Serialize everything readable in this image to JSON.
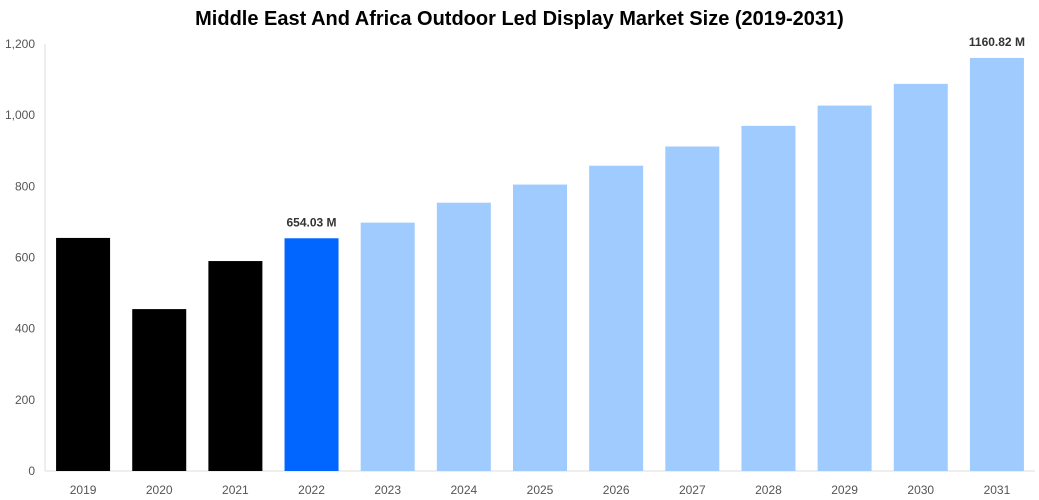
{
  "chart_data": {
    "type": "bar",
    "title": "Middle East And Africa Outdoor Led Display Market Size (2019-2031)",
    "xlabel": "",
    "ylabel": "",
    "ylim": [
      0,
      1200
    ],
    "yticks": [
      0,
      200,
      400,
      600,
      800,
      1000,
      1200
    ],
    "ytick_labels": [
      "0",
      "200",
      "400",
      "600",
      "800",
      "1,000",
      "1,200"
    ],
    "grid": false,
    "categories": [
      "2019",
      "2020",
      "2021",
      "2022",
      "2023",
      "2024",
      "2025",
      "2026",
      "2027",
      "2028",
      "2029",
      "2030",
      "2031"
    ],
    "values": [
      655,
      455,
      590,
      654.03,
      698,
      754,
      805,
      858,
      912,
      970,
      1027,
      1088,
      1160.82
    ],
    "colors": [
      "#000000",
      "#000000",
      "#000000",
      "#0066ff",
      "#a0cbff",
      "#a0cbff",
      "#a0cbff",
      "#a0cbff",
      "#a0cbff",
      "#a0cbff",
      "#a0cbff",
      "#a0cbff",
      "#a0cbff"
    ],
    "data_labels": {
      "3": "654.03 M",
      "12": "1160.82 M"
    }
  }
}
